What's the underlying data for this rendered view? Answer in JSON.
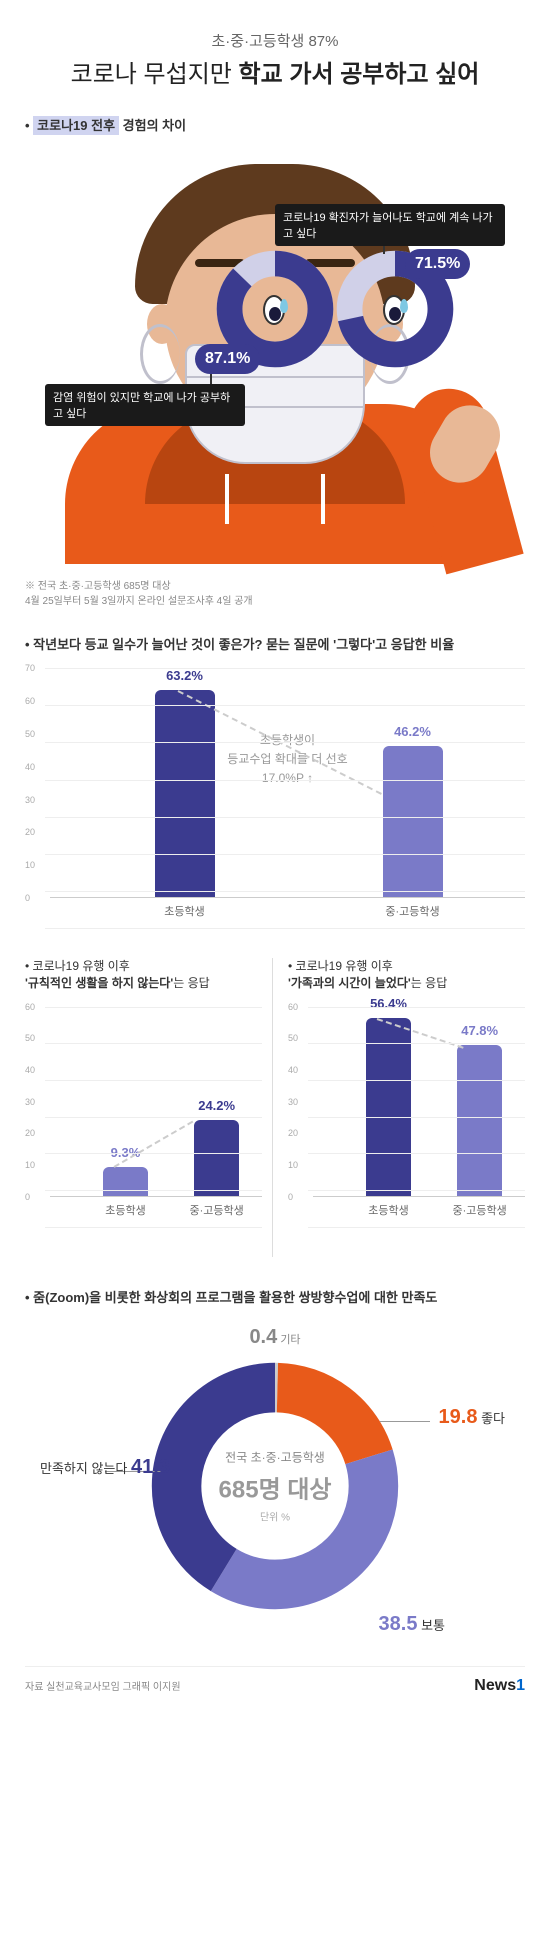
{
  "header": {
    "subtitle": "초·중·고등학생 87%",
    "title_light": "코로나 무섭지만 ",
    "title_bold": "학교 가서 공부하고 싶어"
  },
  "section1": {
    "label_prefix": "• ",
    "label_hl": "코로나19 전후",
    "label_suffix": " 경험의 차이",
    "donut_left": {
      "value": 87.1,
      "label": "87.1%",
      "track_color": "#d0d0e8",
      "fill_color": "#3b3b8f",
      "anno": "감염 위험이 있지만 학교에 나가 공부하고 싶다"
    },
    "donut_right": {
      "value": 71.5,
      "label": "71.5%",
      "track_color": "#d0d0e8",
      "fill_color": "#3b3b8f",
      "anno": "코로나19 확진자가 늘어나도 학교에 계속 나가고 싶다"
    },
    "footnote1": "※ 전국 초·중·고등학생 685명 대상",
    "footnote2": "4월 25일부터 5월 3일까지 온라인 설문조사후 4일 공개"
  },
  "chart1": {
    "title": "• 작년보다 등교 일수가 늘어난 것이 좋은가? 묻는 질문에 '그렇다'고 응답한 비율",
    "y_max": 70,
    "y_step": 10,
    "bars": [
      {
        "cat": "초등학생",
        "value": 63.2,
        "label": "63.2%",
        "color": "#3b3b8f",
        "x_pct": 22
      },
      {
        "cat": "중·고등학생",
        "value": 46.2,
        "label": "46.2%",
        "color": "#7a7ac8",
        "x_pct": 70
      }
    ],
    "note_l1": "초등학생이",
    "note_l2": "등교수업 확대를 더 선호",
    "note_l3": "17.0%P ↑"
  },
  "pair": {
    "left": {
      "title_pre": "• 코로나19 유행 이후",
      "title_hl": "'규칙적인 생활을 하지 않는다'",
      "title_post": "는 응답",
      "y_max": 60,
      "bars": [
        {
          "cat": "초등학생",
          "value": 9.3,
          "label": "9.3%",
          "color": "#7a7ac8",
          "x_pct": 25
        },
        {
          "cat": "중·고등학생",
          "value": 24.2,
          "label": "24.2%",
          "color": "#3b3b8f",
          "x_pct": 68
        }
      ]
    },
    "right": {
      "title_pre": "• 코로나19 유행 이후",
      "title_hl": "'가족과의 시간이 늘었다'",
      "title_post": "는 응답",
      "y_max": 60,
      "bars": [
        {
          "cat": "초등학생",
          "value": 56.4,
          "label": "56.4%",
          "color": "#3b3b8f",
          "x_pct": 25
        },
        {
          "cat": "중·고등학생",
          "value": 47.8,
          "label": "47.8%",
          "color": "#7a7ac8",
          "x_pct": 68
        }
      ]
    }
  },
  "satisfaction": {
    "title": "• 줌(Zoom)을 비롯한 화상회의 프로그램을 활용한 쌍방향수업에 대한 만족도",
    "center_l1": "전국 초·중·고등학생",
    "center_l2": "685명 대상",
    "center_l3": "단위 %",
    "slices": [
      {
        "key": "etc",
        "label": "기타",
        "value": 0.4,
        "color": "#cccccc"
      },
      {
        "key": "good",
        "label": "좋다",
        "value": 19.8,
        "color": "#e85a1a"
      },
      {
        "key": "normal",
        "label": "보통",
        "value": 38.5,
        "color": "#7a7ac8"
      },
      {
        "key": "bad",
        "label": "만족하지 않는다",
        "value": 41.3,
        "color": "#3b3b8f"
      }
    ]
  },
  "credits": {
    "source": "자료  실천교육교사모임     그래픽  이지원",
    "logo_a": "News",
    "logo_b": "1"
  }
}
